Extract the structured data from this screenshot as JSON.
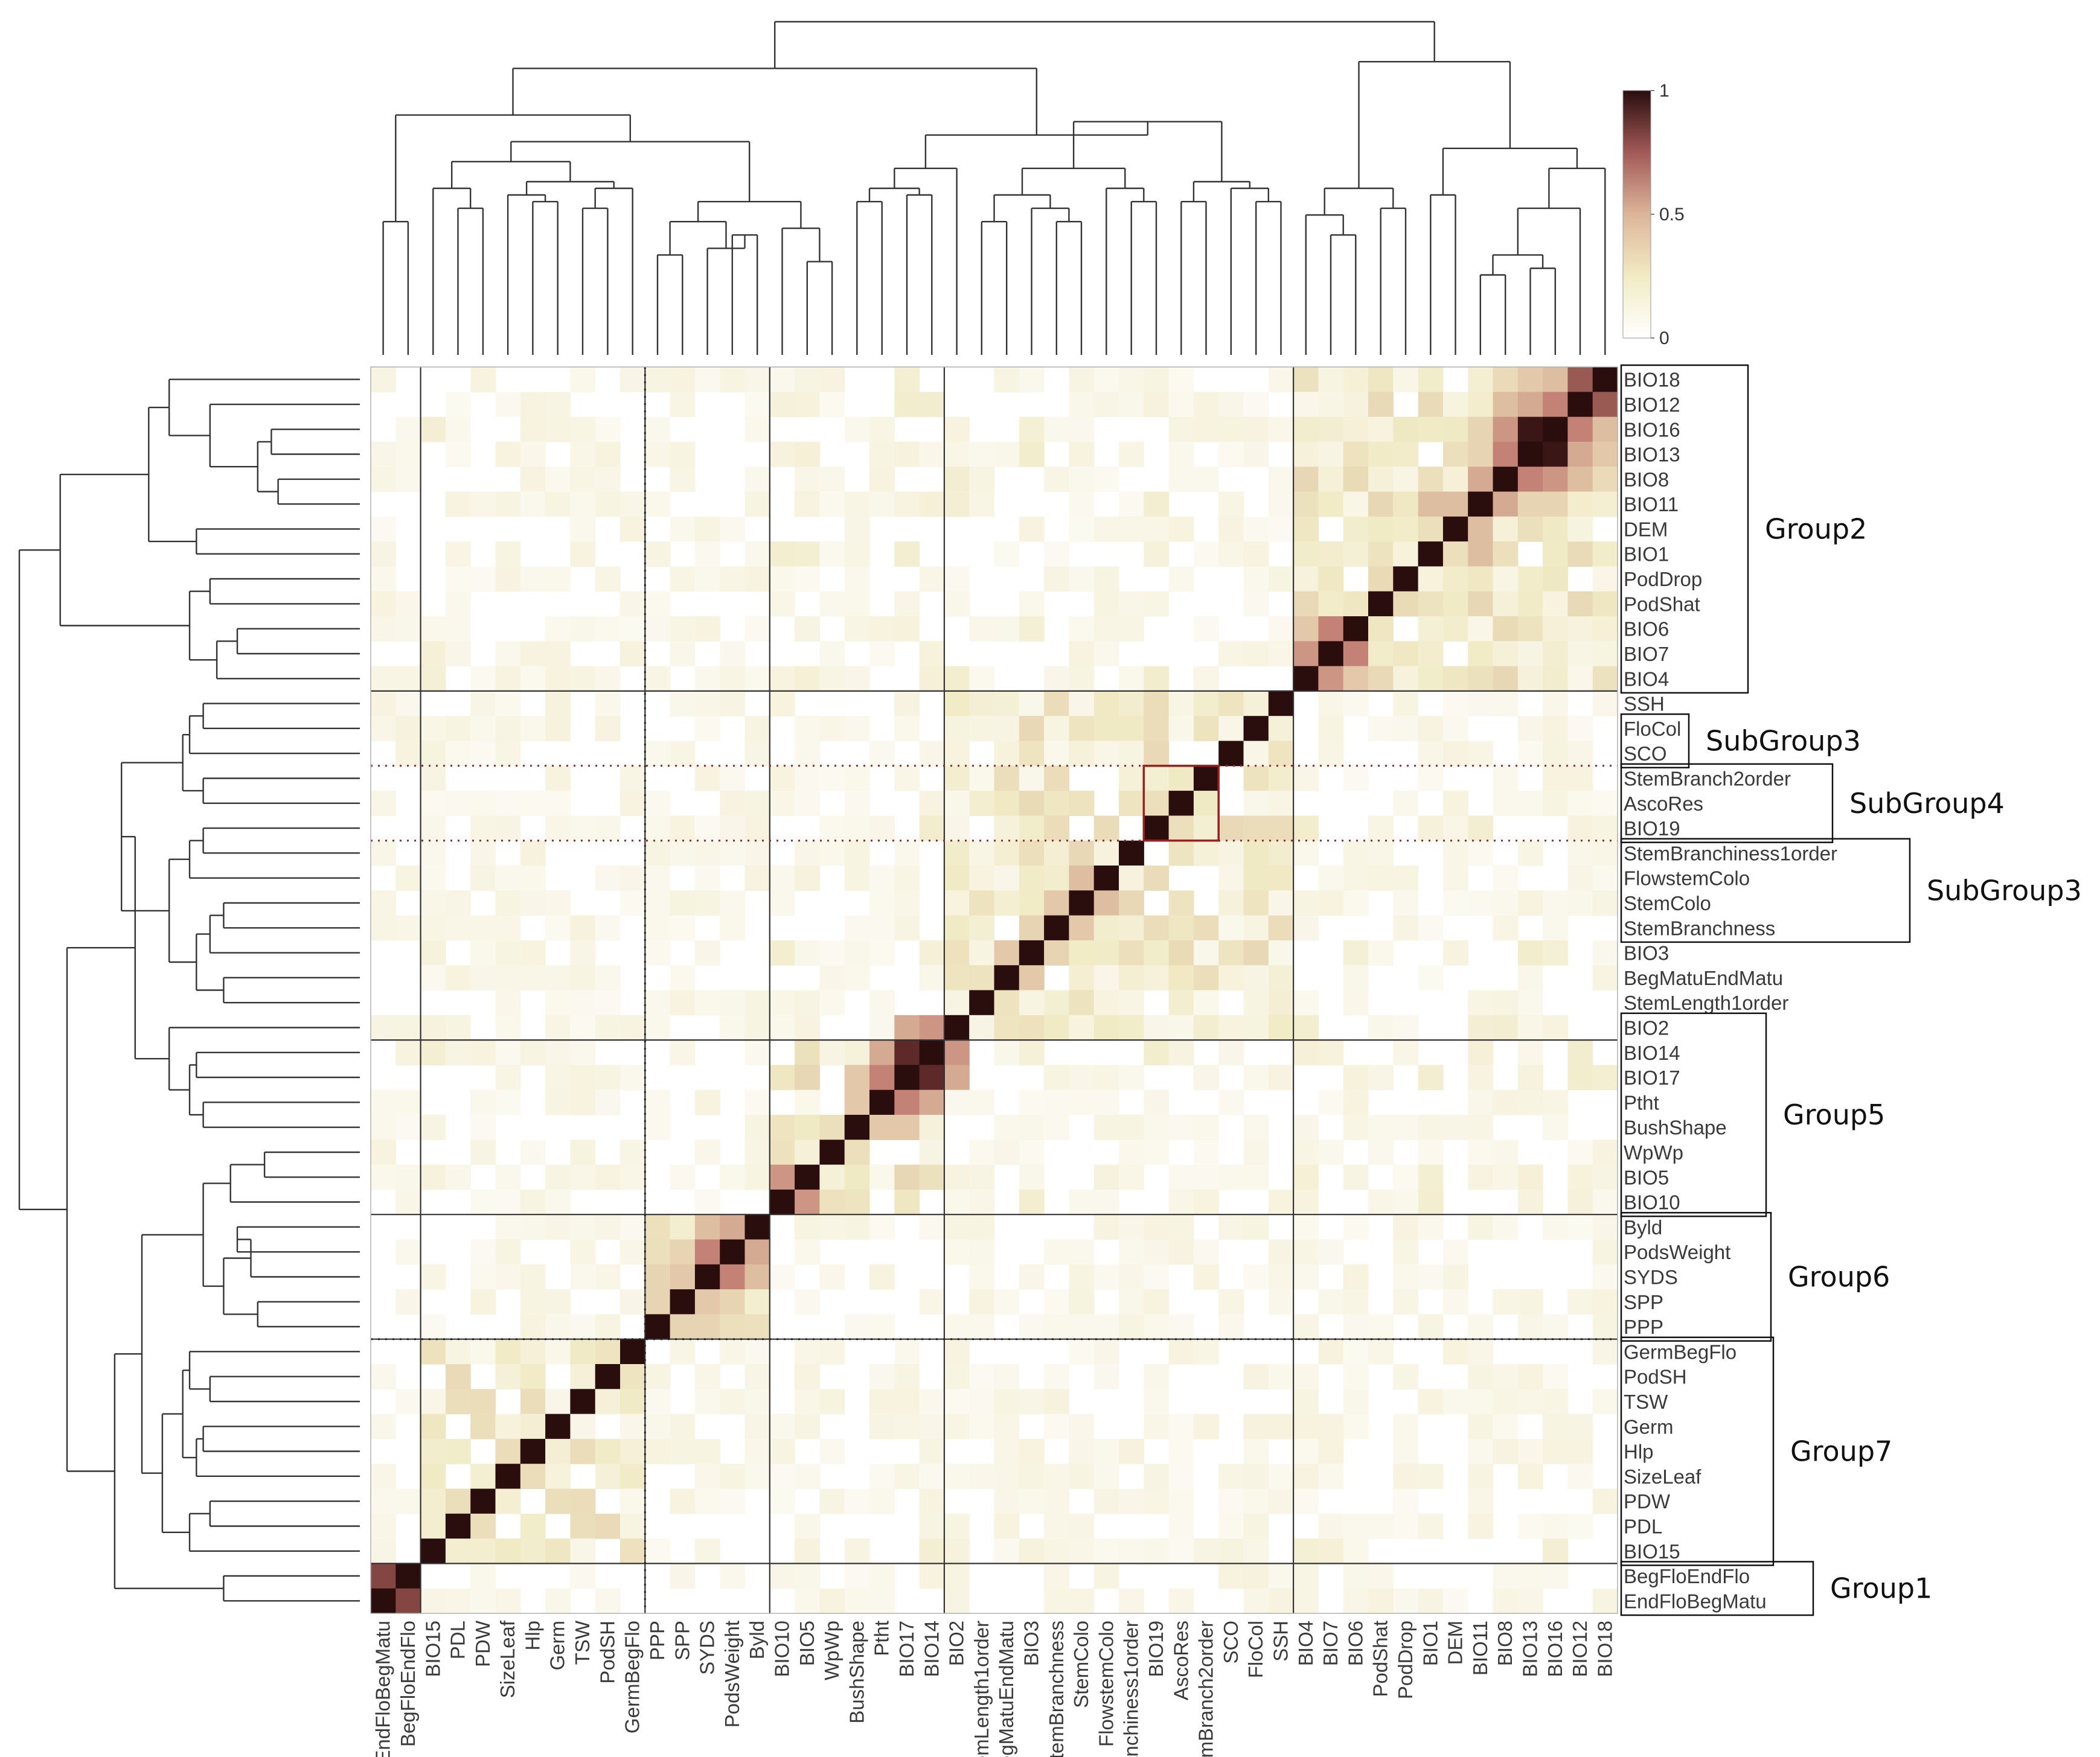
{
  "chart_data": {
    "type": "heatmap",
    "title": "",
    "variables": [
      "EndFloBegMatu",
      "BegFloEndFlo",
      "BIO15",
      "PDL",
      "PDW",
      "SizeLeaf",
      "Hlp",
      "Germ",
      "TSW",
      "PodSH",
      "GermBegFlo",
      "PPP",
      "SPP",
      "SYDS",
      "PodsWeight",
      "Byld",
      "BIO10",
      "BIO5",
      "WpWp",
      "BushShape",
      "Ptht",
      "BIO17",
      "BIO14",
      "BIO2",
      "StemLength1order",
      "BegMatuEndMatu",
      "BIO3",
      "StemBranchness",
      "StemColo",
      "FlowstemColo",
      "StemBranchiness1order",
      "BIO19",
      "AscoRes",
      "StemBranch2order",
      "SCO",
      "FloCol",
      "SSH",
      "BIO4",
      "BIO7",
      "BIO6",
      "PodShat",
      "PodDrop",
      "BIO1",
      "DEM",
      "BIO11",
      "BIO8",
      "BIO13",
      "BIO16",
      "BIO12",
      "BIO18"
    ],
    "row_labels_top_to_bottom": [
      "BIO18",
      "BIO12",
      "BIO16",
      "BIO13",
      "BIO8",
      "BIO11",
      "DEM",
      "BIO1",
      "PodDrop",
      "PodShat",
      "BIO6",
      "BIO7",
      "BIO4",
      "SSH",
      "FloCol",
      "SCO",
      "StemBranch2order",
      "AscoRes",
      "BIO19",
      "StemBranchiness1order",
      "FlowstemColo",
      "StemColo",
      "StemBranchness",
      "BIO3",
      "BegMatuEndMatu",
      "StemLength1order",
      "BIO2",
      "BIO14",
      "BIO17",
      "Ptht",
      "BushShape",
      "WpWp",
      "BIO5",
      "BIO10",
      "Byld",
      "PodsWeight",
      "SYDS",
      "SPP",
      "PPP",
      "GermBegFlo",
      "PodSH",
      "TSW",
      "Germ",
      "Hlp",
      "SizeLeaf",
      "PDW",
      "PDL",
      "BIO15",
      "BegFloEndFlo",
      "EndFloBegMatu"
    ],
    "blocks": [
      [
        0,
        1
      ],
      [
        2,
        10
      ],
      [
        11,
        15
      ],
      [
        16,
        22
      ],
      [
        23,
        36
      ],
      [
        37,
        49
      ]
    ],
    "strong_pairs": [
      [
        "EndFloBegMatu",
        "BegFloEndFlo",
        0.75
      ],
      [
        "BIO14",
        "BIO17",
        0.85
      ],
      [
        "BIO2",
        "BIO14",
        0.55
      ],
      [
        "BIO2",
        "BIO17",
        0.5
      ],
      [
        "Ptht",
        "BIO17",
        0.6
      ],
      [
        "Ptht",
        "BIO14",
        0.5
      ],
      [
        "BushShape",
        "Ptht",
        0.4
      ],
      [
        "BushShape",
        "BIO17",
        0.4
      ],
      [
        "BIO10",
        "BIO5",
        0.55
      ],
      [
        "WpWp",
        "BushShape",
        0.3
      ],
      [
        "Byld",
        "PodsWeight",
        0.5
      ],
      [
        "Byld",
        "SYDS",
        0.45
      ],
      [
        "PodsWeight",
        "SYDS",
        0.6
      ],
      [
        "SPP",
        "SYDS",
        0.4
      ],
      [
        "SPP",
        "PodsWeight",
        0.35
      ],
      [
        "PPP",
        "SPP",
        0.35
      ],
      [
        "PPP",
        "SYDS",
        0.35
      ],
      [
        "PPP",
        "PodsWeight",
        0.3
      ],
      [
        "BIO19",
        "AscoRes",
        0.3
      ],
      [
        "AscoRes",
        "StemBranch2order",
        0.25
      ],
      [
        "BIO19",
        "StemBranch2order",
        0.2
      ],
      [
        "StemColo",
        "StemBranchness",
        0.4
      ],
      [
        "StemColo",
        "FlowstemColo",
        0.45
      ],
      [
        "StemBranchness",
        "BIO3",
        0.35
      ],
      [
        "BIO3",
        "BegMatuEndMatu",
        0.4
      ],
      [
        "BIO6",
        "BIO7",
        0.6
      ],
      [
        "BIO4",
        "BIO7",
        0.55
      ],
      [
        "BIO4",
        "BIO6",
        0.4
      ],
      [
        "BIO13",
        "BIO16",
        0.95
      ],
      [
        "BIO12",
        "BIO18",
        0.7
      ],
      [
        "BIO12",
        "BIO16",
        0.6
      ],
      [
        "BIO8",
        "BIO13",
        0.6
      ],
      [
        "BIO8",
        "BIO16",
        0.55
      ],
      [
        "BIO13",
        "BIO12",
        0.5
      ],
      [
        "BIO8",
        "BIO12",
        0.45
      ],
      [
        "BIO16",
        "BIO18",
        0.45
      ],
      [
        "BIO13",
        "BIO18",
        0.4
      ],
      [
        "BIO11",
        "BIO8",
        0.5
      ],
      [
        "BIO11",
        "BIO13",
        0.35
      ],
      [
        "BIO11",
        "BIO16",
        0.35
      ],
      [
        "DEM",
        "BIO11",
        0.45
      ],
      [
        "BIO1",
        "BIO11",
        0.45
      ],
      [
        "DEM",
        "BIO1",
        0.3
      ],
      [
        "BIO1",
        "BIO8",
        0.3
      ],
      [
        "DEM",
        "BIO13",
        0.3
      ],
      [
        "DEM",
        "BIO16",
        0.25
      ]
    ],
    "colorbar": {
      "ticks": [
        "1",
        "0.5",
        "0"
      ],
      "range": [
        0,
        1
      ],
      "low_color": "#ffffff",
      "mid_color": "#d49a8a",
      "high_color": "#2a0d0d"
    },
    "group_labels": [
      "Group2",
      "SubGroup3",
      "SubGroup4",
      "SubGroup3",
      "Group5",
      "Group6",
      "Group7",
      "Group1"
    ],
    "dendrograms": "top and left",
    "grid": false,
    "legend": "colorbar top-right"
  }
}
